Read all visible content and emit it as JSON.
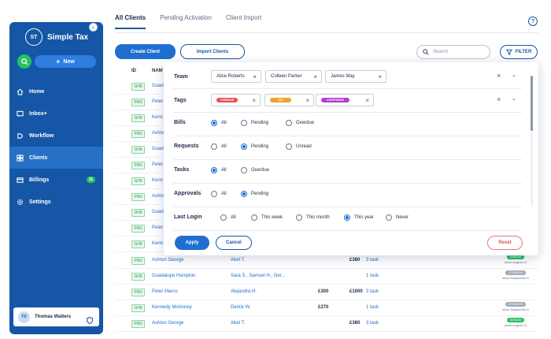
{
  "sidebar": {
    "logo": "ST",
    "app_name": "Simple Tax",
    "new_label": "New",
    "items": [
      {
        "label": "Home"
      },
      {
        "label": "Inbox+"
      },
      {
        "label": "Workflow"
      },
      {
        "label": "Clients"
      },
      {
        "label": "Billings",
        "badge": "11"
      },
      {
        "label": "Settings"
      }
    ],
    "active": "Clients",
    "user": {
      "initials": "TD",
      "name": "Thomas Walters"
    }
  },
  "tabs": [
    "All Clients",
    "Pending Activation",
    "Client Import"
  ],
  "active_tab": "All Clients",
  "toolbar": {
    "create_label": "Create Client",
    "import_label": "Import Clients",
    "search_placeholder": "Search",
    "filter_label": "FILTER"
  },
  "table": {
    "headers": [
      "ID",
      "NAM"
    ],
    "hidden_rows": [
      {
        "code": "GH8",
        "name": "Guada"
      },
      {
        "code": "PM3",
        "name": "Peter"
      },
      {
        "code": "GH8",
        "name": "Kenn"
      },
      {
        "code": "PM3",
        "name": "Ashto"
      },
      {
        "code": "GH8",
        "name": "Guada"
      },
      {
        "code": "PM3",
        "name": "Peter"
      },
      {
        "code": "GH8",
        "name": "Kenn"
      },
      {
        "code": "PM3",
        "name": "Ashto"
      },
      {
        "code": "GH8",
        "name": "Guada"
      },
      {
        "code": "PM3",
        "name": "Peter"
      },
      {
        "code": "GH8",
        "name": "Kenn"
      }
    ],
    "rows": [
      {
        "code": "PM3",
        "name": "Ashton George",
        "assignee": "Abel T.",
        "amount1": "",
        "amount2": "£380",
        "task": "3 task",
        "status": "UNREAD",
        "status_color": "#27c25f",
        "since": "since August-12"
      },
      {
        "code": "GH8",
        "name": "Guadalupe Hampton",
        "assignee": "Sara S., Samuel H., Ger...",
        "amount1": "",
        "amount2": "",
        "task": "1 task",
        "status": "2 PENDING",
        "status_color": "#a3abb8",
        "since": "since September-5"
      },
      {
        "code": "PM3",
        "name": "Peter Marco",
        "assignee": "Alejandra H.",
        "amount1": "£300",
        "amount2": "£1000",
        "task": "3 task",
        "status": "",
        "status_color": "",
        "since": ""
      },
      {
        "code": "GH8",
        "name": "Kennedy Mckinney",
        "assignee": "Derick W.",
        "amount1": "£270",
        "amount2": "",
        "task": "1 task",
        "status": "2 PENDING",
        "status_color": "#a3abb8",
        "since": "since September-5"
      },
      {
        "code": "PM3",
        "name": "Ashton George",
        "assignee": "Abel T.",
        "amount1": "",
        "amount2": "£380",
        "task": "3 task",
        "status": "UNREAD",
        "status_color": "#27c25f",
        "since": "since August-12"
      }
    ]
  },
  "filter_panel": {
    "team": {
      "label": "Team",
      "chips": [
        "Alice Roberts",
        "Colleen Parker",
        "James May"
      ]
    },
    "tags": {
      "label": "Tags",
      "chips": [
        {
          "text": "OVERDUE",
          "color": "#e8505b"
        },
        {
          "text": "TAX",
          "color": "#f0a229"
        },
        {
          "text": "CORPORATE",
          "color": "#b23fd1"
        }
      ]
    },
    "bills": {
      "label": "Bills",
      "options": [
        "All",
        "Pending",
        "Overdue"
      ],
      "selected": "All"
    },
    "requests": {
      "label": "Requests",
      "options": [
        "All",
        "Pending",
        "Unread"
      ],
      "selected": "Pending"
    },
    "tasks": {
      "label": "Tasks",
      "options": [
        "All",
        "Overdue"
      ],
      "selected": "All"
    },
    "approvals": {
      "label": "Approvals",
      "options": [
        "All",
        "Pending"
      ],
      "selected": "Pending"
    },
    "last_login": {
      "label": "Last Login",
      "options": [
        "All",
        "This week",
        "This month",
        "This year",
        "Never"
      ],
      "selected": "This year"
    },
    "apply_label": "Apply",
    "cancel_label": "Cancel",
    "reset_label": "Reset"
  },
  "colors": {
    "sidebar": "#1557a6",
    "accent": "#1e6fd0",
    "success": "#27c25f",
    "danger": "#d9534f"
  },
  "help_icon": "?"
}
